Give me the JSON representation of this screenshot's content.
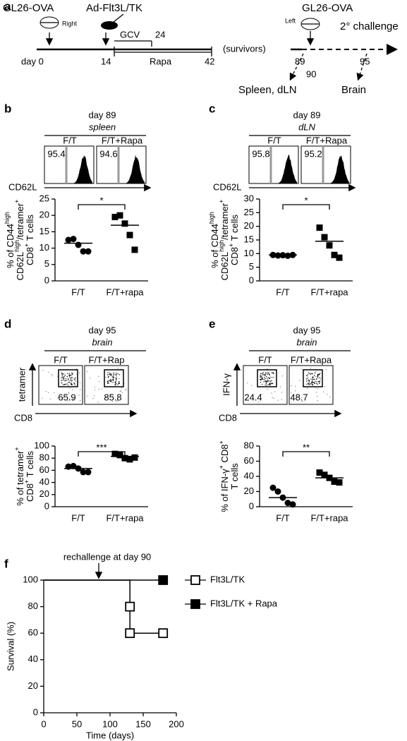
{
  "timeline": {
    "label": "a",
    "left_tumor": "GL26-OVA",
    "right": "Right",
    "treatment": "Ad-Flt3L/TK",
    "gcv": "GCV",
    "gcv_end": "24",
    "survivors": "(survivors)",
    "left": "Left",
    "rechallenge_tumor": "GL26-OVA",
    "challenge": "2° challenge",
    "day0": "day 0",
    "day14": "14",
    "rapa": "Rapa",
    "rapa_end": "42",
    "day89": "89",
    "day90": "90",
    "day95": "95",
    "spleen": "Spleen, dLN",
    "brain": "Brain"
  },
  "flow_panels": [
    {
      "label": "b",
      "day": "day 89",
      "tissue": "spleen",
      "samples": [
        {
          "name": "F/T",
          "value": 95.4
        },
        {
          "name": "F/T+Rapa",
          "value": 94.6
        }
      ],
      "x_axis": "CD62L"
    },
    {
      "label": "c",
      "day": "day 89",
      "tissue": "dLN",
      "samples": [
        {
          "name": "F/T",
          "value": 95.8
        },
        {
          "name": "F/T+Rapa",
          "value": 95.2
        }
      ],
      "x_axis": "CD62L"
    },
    {
      "label": "d",
      "day": "day 95",
      "tissue": "brain",
      "samples": [
        {
          "name": "F/T",
          "value": 65.9
        },
        {
          "name": "F/T+Rap",
          "value": 85.8
        }
      ],
      "x_axis": "CD8",
      "y_axis": "tetramer"
    },
    {
      "label": "e",
      "day": "day 95",
      "tissue": "brain",
      "samples": [
        {
          "name": "F/T",
          "value": 24.4
        },
        {
          "name": "F/T+Rapa",
          "value": 48.7
        }
      ],
      "x_axis": "CD8",
      "y_axis": "IFN-γ"
    }
  ],
  "chart_data": [
    {
      "type": "dot",
      "categories": [
        "F/T",
        "F/T+rapa"
      ],
      "values": [
        [
          12.5,
          12.8,
          11,
          9,
          9
        ],
        [
          19.5,
          20,
          17.5,
          14,
          9.5
        ]
      ],
      "means": [
        11.5,
        17
      ],
      "markers": [
        "circle",
        "square"
      ],
      "color": "#000000",
      "significance": "*",
      "ylim": [
        0,
        25
      ],
      "yticks": [
        0,
        5,
        10,
        15,
        20,
        25
      ],
      "ylabel": [
        [
          "% of CD44",
          "high"
        ],
        [
          "CD62L",
          "high",
          "/tetramer",
          "+"
        ],
        [
          "CD8",
          "+",
          " T cells"
        ]
      ]
    },
    {
      "type": "dot",
      "categories": [
        "F/T",
        "F/T+rapa"
      ],
      "values": [
        [
          9.5,
          9.3,
          9.4,
          9.2,
          9.5
        ],
        [
          19.5,
          16,
          13,
          9.5,
          8.5
        ]
      ],
      "means": [
        9.5,
        14.5
      ],
      "markers": [
        "circle",
        "square"
      ],
      "color": "#000000",
      "significance": "*",
      "ylim": [
        0,
        30
      ],
      "yticks": [
        0,
        5,
        10,
        15,
        20,
        25,
        30
      ],
      "ylabel": [
        [
          "% of CD44",
          "high"
        ],
        [
          "CD62L",
          "high",
          "/tetramer",
          "+"
        ],
        [
          "CD8",
          "+",
          " T cells"
        ]
      ]
    },
    {
      "type": "dot",
      "categories": [
        "F/T",
        "F/T+rapa"
      ],
      "values": [
        [
          66,
          67,
          63,
          57,
          57
        ],
        [
          87,
          85,
          80,
          78,
          81
        ]
      ],
      "means": [
        63,
        83
      ],
      "markers": [
        "circle",
        "square"
      ],
      "color": "#000000",
      "significance": "***",
      "ylim": [
        0,
        100
      ],
      "yticks": [
        0,
        20,
        40,
        60,
        80,
        100
      ],
      "ylabel": [
        [
          "% of tetramer",
          "+"
        ],
        [
          "CD8",
          "+",
          " T cells"
        ]
      ]
    },
    {
      "type": "dot",
      "categories": [
        "F/T",
        "F/T+rapa"
      ],
      "values": [
        [
          25,
          20,
          12,
          5,
          3
        ],
        [
          45,
          42,
          38,
          33,
          32
        ]
      ],
      "means": [
        12,
        38
      ],
      "markers": [
        "circle",
        "square"
      ],
      "color": "#000000",
      "significance": "**",
      "ylim": [
        0,
        80
      ],
      "yticks": [
        0,
        20,
        40,
        60,
        80
      ],
      "ylabel": [
        [
          "% of IFN-γ",
          "+",
          " CD8",
          "+"
        ],
        [
          "T cells"
        ]
      ]
    },
    {
      "type": "survival",
      "label": "f",
      "annotation": "rechallenge at day 90",
      "xlabel": "Time (days)",
      "ylabel": "Survival (%)",
      "xlim": [
        0,
        200
      ],
      "xticks": [
        0,
        50,
        100,
        150,
        200
      ],
      "ylim": [
        0,
        100
      ],
      "yticks": [
        0,
        20,
        40,
        60,
        80,
        100
      ],
      "series": [
        {
          "name": "Flt3L/TK",
          "color": "#000000",
          "filled": false,
          "x": [
            0,
            130,
            130,
            180
          ],
          "values": [
            100,
            80,
            60,
            60
          ]
        },
        {
          "name": "Flt3L/TK + Rapa",
          "color": "#000000",
          "filled": true,
          "x": [
            0,
            180
          ],
          "values": [
            100,
            100
          ]
        }
      ]
    }
  ]
}
